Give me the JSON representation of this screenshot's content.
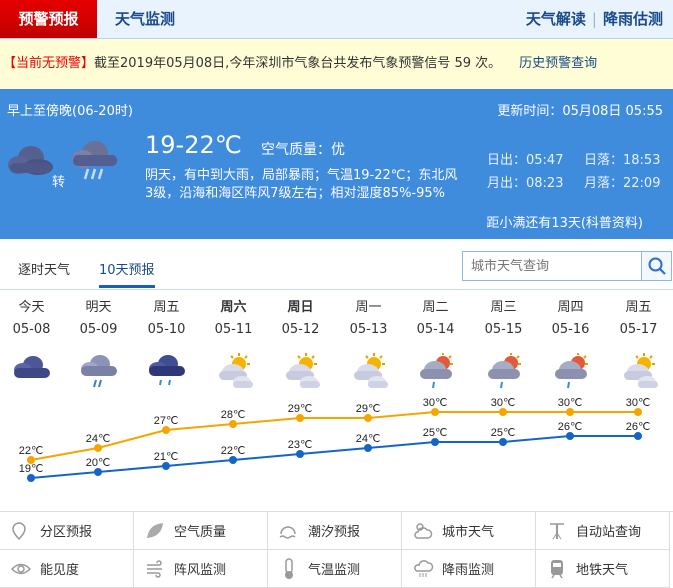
{
  "header": {
    "active_tab": "预警预报",
    "tab2": "天气监测",
    "right_links": [
      "天气解读",
      "降雨估测"
    ]
  },
  "warning": {
    "status": "【当前无预警】",
    "text": "截至2019年05月08日,今年深圳市气象台共发布气象预警信号 59 次。",
    "history_link": "历史预警查询"
  },
  "today": {
    "period": "早上至傍晚(06-20时)",
    "update": "更新时间：05月08日 05:55",
    "temp": "19-22℃",
    "aqi_label": "空气质量：",
    "aqi": "优",
    "turn": "转",
    "desc1": "阴天，有中到大雨，局部暴雨；气温19-22℃；东北风",
    "desc2": "3级，沿海和海区阵风7级左右；相对湿度85%-95%",
    "sunrise": "日出：05:47",
    "sunset": "日落：18:53",
    "moonrise": "月出：08:23",
    "moonset": "月落：22:09",
    "solar_term": "距小满还有13天(科普资料)",
    "icons": [
      "overcast",
      "heavy-rain"
    ]
  },
  "tabs": [
    "逐时天气",
    "10天预报"
  ],
  "search": {
    "placeholder": "城市天气查询"
  },
  "days": [
    {
      "w": "今天",
      "d": "05-08",
      "icon": "overcast",
      "bold": false
    },
    {
      "w": "明天",
      "d": "05-09",
      "icon": "heavy-rain",
      "bold": false
    },
    {
      "w": "周五",
      "d": "05-10",
      "icon": "rain",
      "bold": false
    },
    {
      "w": "周六",
      "d": "05-11",
      "icon": "partly-cloudy",
      "bold": true
    },
    {
      "w": "周日",
      "d": "05-12",
      "icon": "partly-cloudy",
      "bold": true
    },
    {
      "w": "周一",
      "d": "05-13",
      "icon": "partly-cloudy",
      "bold": false
    },
    {
      "w": "周二",
      "d": "05-14",
      "icon": "shower",
      "bold": false
    },
    {
      "w": "周三",
      "d": "05-15",
      "icon": "shower",
      "bold": false
    },
    {
      "w": "周四",
      "d": "05-16",
      "icon": "shower",
      "bold": false
    },
    {
      "w": "周五",
      "d": "05-17",
      "icon": "partly-cloudy",
      "bold": false
    }
  ],
  "chart_data": {
    "type": "line",
    "categories": [
      "05-08",
      "05-09",
      "05-10",
      "05-11",
      "05-12",
      "05-13",
      "05-14",
      "05-15",
      "05-16",
      "05-17"
    ],
    "series": [
      {
        "values": [
          22,
          24,
          27,
          28,
          29,
          29,
          30,
          30,
          30,
          30
        ],
        "color": "#f5a500"
      },
      {
        "values": [
          19,
          20,
          21,
          22,
          23,
          24,
          25,
          25,
          26,
          26
        ],
        "color": "#1565c8"
      }
    ],
    "unit": "℃"
  },
  "links": [
    {
      "label": "分区预报",
      "icon": "map-pin-icon"
    },
    {
      "label": "空气质量",
      "icon": "leaf-icon"
    },
    {
      "label": "潮汐预报",
      "icon": "tide-icon"
    },
    {
      "label": "城市天气",
      "icon": "sun-cloud-icon"
    },
    {
      "label": "自动站查询",
      "icon": "weather-station-icon"
    },
    {
      "label": "能见度",
      "icon": "eye-icon"
    },
    {
      "label": "阵风监测",
      "icon": "wind-icon"
    },
    {
      "label": "气温监测",
      "icon": "thermometer-icon"
    },
    {
      "label": "降雨监测",
      "icon": "rain-cloud-icon"
    },
    {
      "label": "地铁天气",
      "icon": "train-icon"
    }
  ]
}
